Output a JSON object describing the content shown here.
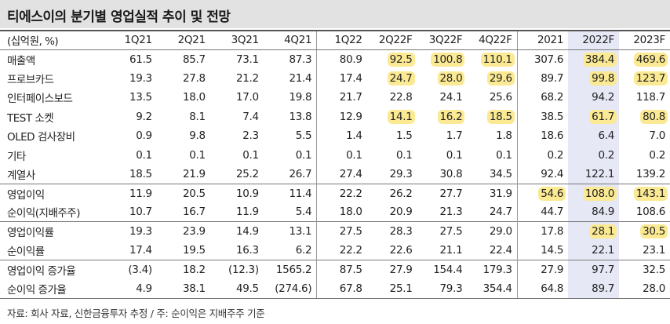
{
  "title": "티에스이의 분기별 영업실적 추이 및 전망",
  "header": {
    "unit": "(십억원, %)",
    "columns": [
      "1Q21",
      "2Q21",
      "3Q21",
      "4Q21",
      "1Q22",
      "2Q22F",
      "3Q22F",
      "4Q22F",
      "2021",
      "2022F",
      "2023F"
    ]
  },
  "rows": [
    {
      "label": "매출액",
      "values": [
        "61.5",
        "85.7",
        "73.1",
        "87.3",
        "80.9",
        "92.5",
        "100.8",
        "110.1",
        "307.6",
        "384.4",
        "469.6"
      ],
      "highlight": [
        5,
        6,
        7,
        9,
        10
      ]
    },
    {
      "label": "프로브카드",
      "values": [
        "19.3",
        "27.8",
        "21.2",
        "21.4",
        "17.4",
        "24.7",
        "28.0",
        "29.6",
        "89.7",
        "99.8",
        "123.7"
      ],
      "highlight": [
        5,
        6,
        7,
        9,
        10
      ]
    },
    {
      "label": "인터페이스보드",
      "values": [
        "13.5",
        "18.0",
        "17.0",
        "19.8",
        "21.7",
        "22.8",
        "24.1",
        "25.6",
        "68.2",
        "94.2",
        "118.7"
      ],
      "highlight": []
    },
    {
      "label": "TEST 소켓",
      "values": [
        "9.2",
        "8.1",
        "7.4",
        "13.8",
        "12.9",
        "14.1",
        "16.2",
        "18.5",
        "38.5",
        "61.7",
        "80.8"
      ],
      "highlight": [
        5,
        6,
        7,
        9,
        10
      ]
    },
    {
      "label": "OLED 검사장비",
      "values": [
        "0.9",
        "9.8",
        "2.3",
        "5.5",
        "1.4",
        "1.5",
        "1.7",
        "1.8",
        "18.6",
        "6.4",
        "7.0"
      ],
      "highlight": []
    },
    {
      "label": "기타",
      "values": [
        "0.1",
        "0.1",
        "0.1",
        "0.1",
        "0.1",
        "0.1",
        "0.1",
        "0.1",
        "0.2",
        "0.2",
        "0.2"
      ],
      "highlight": []
    },
    {
      "label": "계열사",
      "values": [
        "18.5",
        "21.9",
        "25.2",
        "26.7",
        "27.4",
        "29.3",
        "30.8",
        "34.5",
        "92.4",
        "122.1",
        "139.2"
      ],
      "highlight": []
    },
    {
      "label": "영업이익",
      "values": [
        "11.9",
        "20.5",
        "10.9",
        "11.4",
        "22.2",
        "26.2",
        "27.7",
        "31.9",
        "54.6",
        "108.0",
        "143.1"
      ],
      "highlight": [
        8,
        9,
        10
      ]
    },
    {
      "label": "순이익(지배주주)",
      "values": [
        "10.7",
        "16.7",
        "11.9",
        "5.4",
        "18.0",
        "20.9",
        "21.3",
        "24.7",
        "44.7",
        "84.9",
        "108.6"
      ],
      "highlight": []
    },
    {
      "label": "영업이익률",
      "values": [
        "19.3",
        "23.9",
        "14.9",
        "13.1",
        "27.5",
        "28.3",
        "27.5",
        "29.0",
        "17.8",
        "28.1",
        "30.5"
      ],
      "highlight": [
        9,
        10
      ]
    },
    {
      "label": "순이익률",
      "values": [
        "17.4",
        "19.5",
        "16.3",
        "6.2",
        "22.2",
        "22.6",
        "21.1",
        "22.4",
        "14.5",
        "22.1",
        "23.1"
      ],
      "highlight": []
    },
    {
      "label": "영업이익 증가율",
      "values": [
        "(3.4)",
        "18.2",
        "(12.3)",
        "1565.2",
        "87.5",
        "27.9",
        "154.4",
        "179.3",
        "27.9",
        "97.7",
        "32.5"
      ],
      "highlight": []
    },
    {
      "label": "순이익 증가율",
      "values": [
        "4.9",
        "38.1",
        "49.5",
        "(274.6)",
        "67.8",
        "25.1",
        "79.3",
        "354.4",
        "64.8",
        "89.7",
        "28.0"
      ],
      "highlight": []
    }
  ],
  "source": "자료: 회사 자료, 신한금융투자 추정 / 주: 순이익은 지배주주 기준",
  "colors": {
    "highlight": "#fbea93",
    "shaded_column": "#e6e8f6",
    "title_bar": "#e2e2e2"
  }
}
